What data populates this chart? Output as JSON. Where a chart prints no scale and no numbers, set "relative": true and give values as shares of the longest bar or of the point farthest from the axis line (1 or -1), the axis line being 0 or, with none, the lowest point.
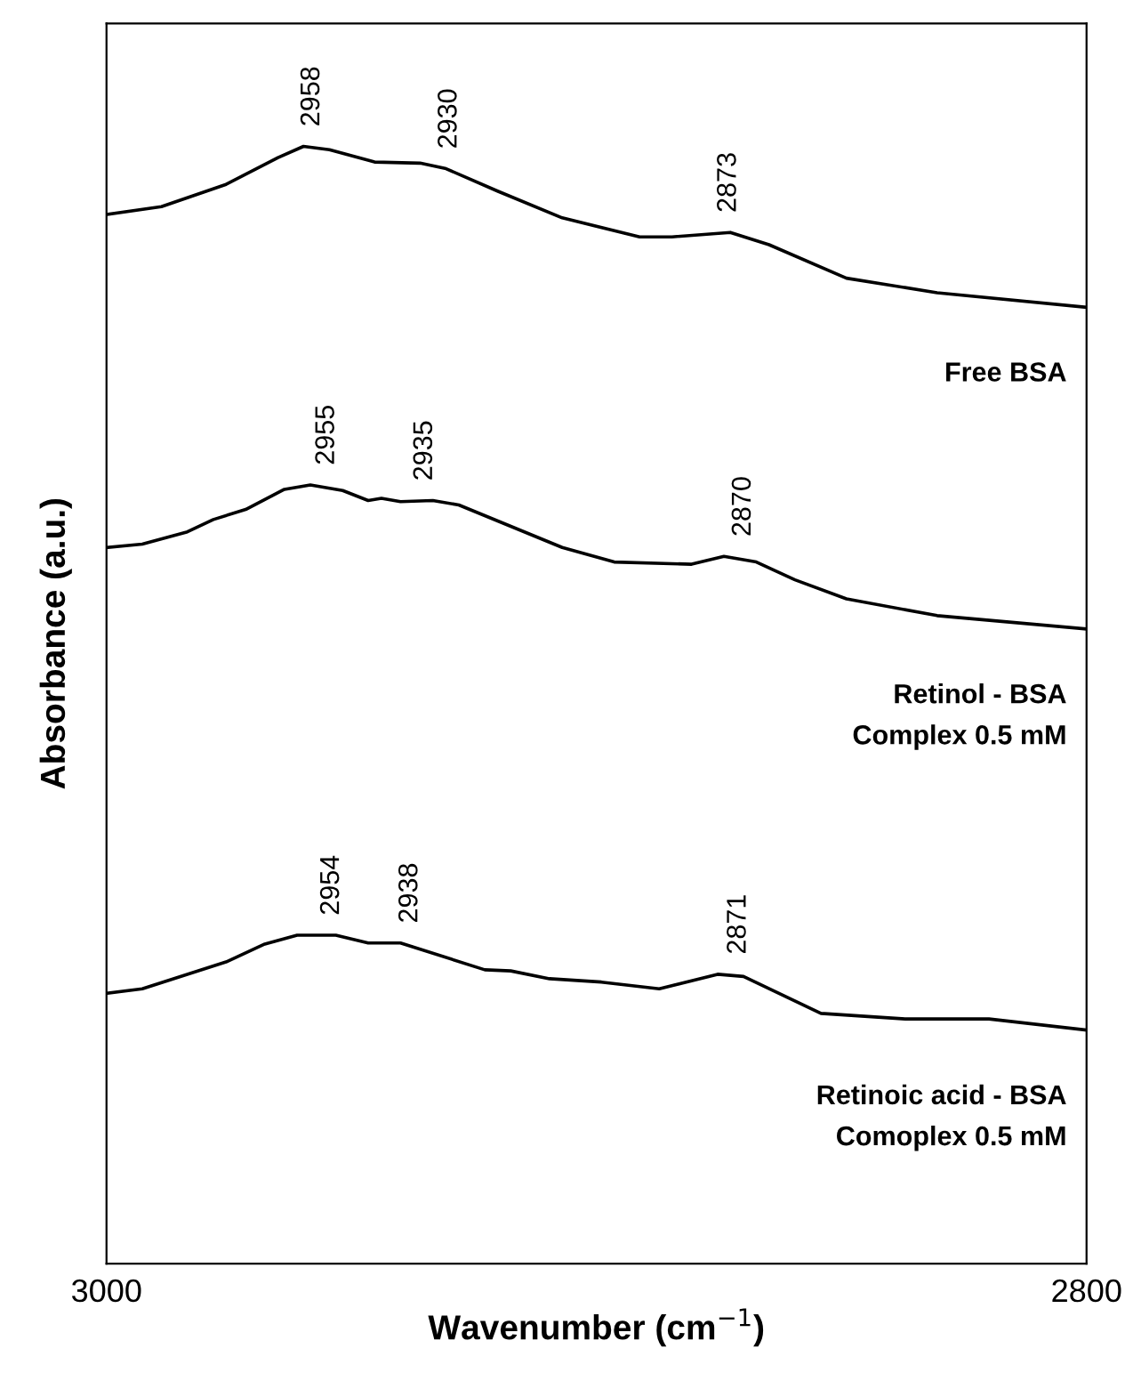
{
  "chart_data": {
    "type": "line",
    "relative": true,
    "xlabel": "Wavenumber (cm$^{−1}$)",
    "ylabel": "Absorbance (a.u.)",
    "xlim": [
      3000,
      2800
    ],
    "xticks": [
      3000,
      2800
    ],
    "tick_labels": "x",
    "grid": false,
    "legend": false,
    "marker": "none",
    "line_style": "solid",
    "series": [
      {
        "name": "Free BSA",
        "color": "#000000",
        "x": [
          3000,
          2988.8,
          2975.6,
          2965,
          2959.8,
          2954.5,
          2945.3,
          2936,
          2930.7,
          2920.2,
          2907,
          2891.2,
          2884.6,
          2872.7,
          2864.8,
          2849,
          2830.5,
          2800
        ],
        "values": [
          0.939,
          0.946,
          0.966,
          0.99,
          1.0,
          0.997,
          0.986,
          0.985,
          0.98,
          0.96,
          0.936,
          0.919,
          0.919,
          0.923,
          0.912,
          0.882,
          0.869,
          0.856
        ]
      },
      {
        "name": "Retinol - BSA\nComplex 0.5 mM",
        "color": "#000000",
        "x": [
          3000,
          2992.7,
          2983.5,
          2978.2,
          2971.6,
          2963.7,
          2958.4,
          2951.8,
          2946.6,
          2943.9,
          2940,
          2933.4,
          2928.1,
          2907,
          2896.4,
          2880.6,
          2874,
          2867.4,
          2859.5,
          2849,
          2830.5,
          2800
        ],
        "values": [
          0.641,
          0.644,
          0.655,
          0.666,
          0.675,
          0.693,
          0.697,
          0.692,
          0.683,
          0.685,
          0.682,
          0.683,
          0.679,
          0.641,
          0.628,
          0.626,
          0.633,
          0.628,
          0.612,
          0.595,
          0.58,
          0.568
        ]
      },
      {
        "name": "Retinoic acid - BSA\nComoplex 0.5 mM",
        "color": "#000000",
        "x": [
          3000,
          2992.7,
          2975.6,
          2967.7,
          2961.1,
          2953.2,
          2946.6,
          2940,
          2922.8,
          2917.5,
          2909.6,
          2899,
          2887.2,
          2875.3,
          2870,
          2854.2,
          2837,
          2819.9,
          2800
        ],
        "values": [
          0.242,
          0.246,
          0.27,
          0.286,
          0.294,
          0.294,
          0.287,
          0.287,
          0.263,
          0.262,
          0.255,
          0.252,
          0.246,
          0.259,
          0.257,
          0.224,
          0.219,
          0.219,
          0.209
        ]
      }
    ],
    "annotations": [
      {
        "text": "2958",
        "x": 2958,
        "y": 1.0
      },
      {
        "text": "2930",
        "x": 2930,
        "y": 0.98
      },
      {
        "text": "2873",
        "x": 2873,
        "y": 0.923
      },
      {
        "text": "2955",
        "x": 2955,
        "y": 0.697
      },
      {
        "text": "2935",
        "x": 2935,
        "y": 0.683
      },
      {
        "text": "2870",
        "x": 2870,
        "y": 0.633
      },
      {
        "text": "2954",
        "x": 2954,
        "y": 0.294
      },
      {
        "text": "2938",
        "x": 2938,
        "y": 0.287
      },
      {
        "text": "2871",
        "x": 2871,
        "y": 0.259
      }
    ]
  }
}
